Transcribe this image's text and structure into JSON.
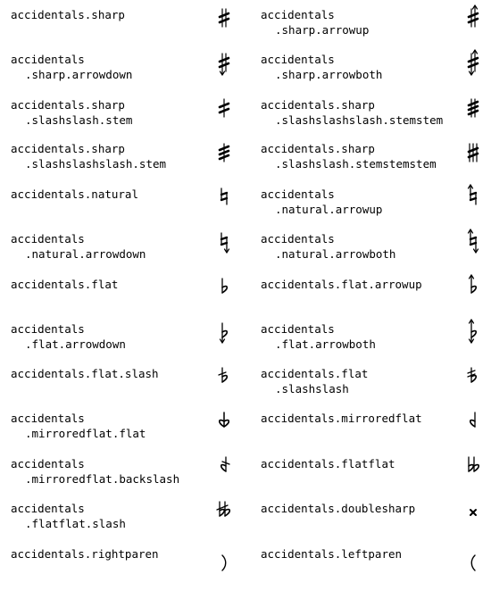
{
  "entries": [
    {
      "left": {
        "line1": "accidentals.sharp",
        "line2": "",
        "glyph": "sharp-icon"
      },
      "right": {
        "line1": "accidentals",
        "line2": ".sharp.arrowup",
        "glyph": "sharp-arrowup-icon"
      }
    },
    {
      "left": {
        "line1": "accidentals",
        "line2": ".sharp.arrowdown",
        "glyph": "sharp-arrowdown-icon"
      },
      "right": {
        "line1": "accidentals",
        "line2": ".sharp.arrowboth",
        "glyph": "sharp-arrowboth-icon"
      }
    },
    {
      "left": {
        "line1": "accidentals.sharp",
        "line2": ".slashslash.stem",
        "glyph": "sharp-slashslash-stem-icon"
      },
      "right": {
        "line1": "accidentals.sharp",
        "line2": ".slashslashslash.stemstem",
        "glyph": "sharp-slashslashslash-stemstem-icon"
      }
    },
    {
      "left": {
        "line1": "accidentals.sharp",
        "line2": ".slashslashslash.stem",
        "glyph": "sharp-slashslashslash-stem-icon"
      },
      "right": {
        "line1": "accidentals.sharp",
        "line2": ".slashslash.stemstemstem",
        "glyph": "sharp-slashslash-stemstemstem-icon"
      }
    },
    {
      "left": {
        "line1": "accidentals.natural",
        "line2": "",
        "glyph": "natural-icon"
      },
      "right": {
        "line1": "accidentals",
        "line2": ".natural.arrowup",
        "glyph": "natural-arrowup-icon"
      }
    },
    {
      "left": {
        "line1": "accidentals",
        "line2": ".natural.arrowdown",
        "glyph": "natural-arrowdown-icon"
      },
      "right": {
        "line1": "accidentals",
        "line2": ".natural.arrowboth",
        "glyph": "natural-arrowboth-icon"
      }
    },
    {
      "left": {
        "line1": "accidentals.flat",
        "line2": "",
        "glyph": "flat-icon"
      },
      "right": {
        "line1": "accidentals.flat.arrowup",
        "line2": "",
        "glyph": "flat-arrowup-icon"
      }
    },
    {
      "left": {
        "line1": "accidentals",
        "line2": ".flat.arrowdown",
        "glyph": "flat-arrowdown-icon"
      },
      "right": {
        "line1": "accidentals",
        "line2": ".flat.arrowboth",
        "glyph": "flat-arrowboth-icon"
      }
    },
    {
      "left": {
        "line1": "accidentals.flat.slash",
        "line2": "",
        "glyph": "flat-slash-icon"
      },
      "right": {
        "line1": "accidentals.flat",
        "line2": ".slashslash",
        "glyph": "flat-slashslash-icon"
      }
    },
    {
      "left": {
        "line1": "accidentals",
        "line2": ".mirroredflat.flat",
        "glyph": "mirroredflat-flat-icon"
      },
      "right": {
        "line1": "accidentals.mirroredflat",
        "line2": "",
        "glyph": "mirroredflat-icon"
      }
    },
    {
      "left": {
        "line1": "accidentals",
        "line2": ".mirroredflat.backslash",
        "glyph": "mirroredflat-backslash-icon"
      },
      "right": {
        "line1": "accidentals.flatflat",
        "line2": "",
        "glyph": "flatflat-icon"
      }
    },
    {
      "left": {
        "line1": "accidentals",
        "line2": ".flatflat.slash",
        "glyph": "flatflat-slash-icon"
      },
      "right": {
        "line1": "accidentals.doublesharp",
        "line2": "",
        "glyph": "doublesharp-icon"
      }
    },
    {
      "left": {
        "line1": "accidentals.rightparen",
        "line2": "",
        "glyph": "rightparen-icon"
      },
      "right": {
        "line1": "accidentals.leftparen",
        "line2": "",
        "glyph": "leftparen-icon"
      }
    }
  ]
}
